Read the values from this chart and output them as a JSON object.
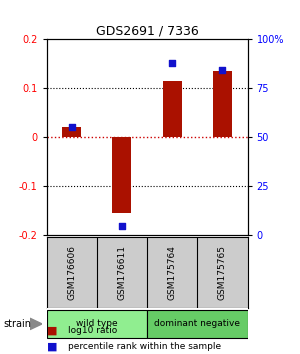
{
  "title": "GDS2691 / 7336",
  "samples": [
    "GSM176606",
    "GSM176611",
    "GSM175764",
    "GSM175765"
  ],
  "log10_ratios": [
    0.02,
    -0.155,
    0.115,
    0.135
  ],
  "percentile_ranks": [
    55,
    5,
    88,
    84
  ],
  "groups": [
    {
      "label": "wild type",
      "color": "#90ee90",
      "span": [
        0,
        2
      ]
    },
    {
      "label": "dominant negative",
      "color": "#66cc66",
      "span": [
        2,
        4
      ]
    }
  ],
  "ylim": [
    -0.2,
    0.2
  ],
  "yticks_left": [
    -0.2,
    -0.1,
    0.0,
    0.1,
    0.2
  ],
  "yticks_right": [
    0,
    25,
    50,
    75,
    100
  ],
  "bar_color": "#aa1100",
  "dot_color": "#1111cc",
  "zero_line_color": "#cc0000",
  "grid_color": "#000000",
  "background_color": "#ffffff",
  "legend_red_label": "log10 ratio",
  "legend_blue_label": "percentile rank within the sample",
  "strain_label": "strain"
}
